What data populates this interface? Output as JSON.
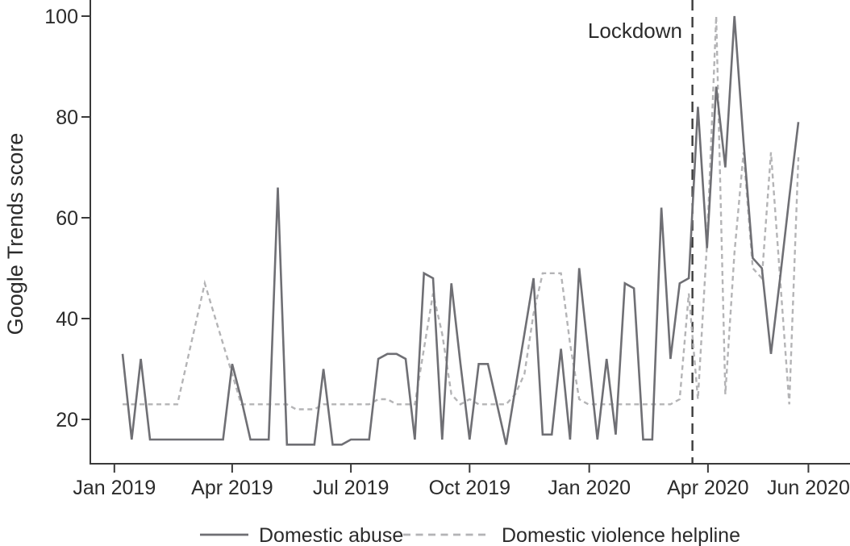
{
  "figure": {
    "kind": "line chart",
    "background": "#ffffff"
  },
  "colors": {
    "series_domestic_abuse": "#6f6f74",
    "series_helpline": "#b4b4b6",
    "axis": "#3a3a3a",
    "text": "#2b2b2b",
    "annotation_line": "#3b3b3b"
  },
  "legend": {
    "items": [
      {
        "label": "Domestic abuse",
        "style": "solid"
      },
      {
        "label": "Domestic violence helpline",
        "style": "dashed"
      }
    ]
  },
  "chart_data": {
    "type": "line",
    "title": "",
    "xlabel": "",
    "ylabel": "Google Trends score",
    "x_unit": "weekly observations (index 0–74, Jan 2019 – Jun 2020)",
    "ylim": [
      11,
      103
    ],
    "grid": false,
    "legend_position": "bottom",
    "y_ticks": [
      20,
      40,
      60,
      80,
      100
    ],
    "x_ticks": [
      {
        "label": "Jan 2019",
        "week": -0.9
      },
      {
        "label": "Apr 2019",
        "week": 12.0
      },
      {
        "label": "Jul 2019",
        "week": 25.0
      },
      {
        "label": "Oct 2019",
        "week": 38.0
      },
      {
        "label": "Jan 2020",
        "week": 51.1
      },
      {
        "label": "Apr 2020",
        "week": 64.1
      },
      {
        "label": "Jun 2020",
        "week": 75.1
      }
    ],
    "annotations": [
      {
        "type": "vline",
        "label": "Lockdown",
        "week": 62.4
      }
    ],
    "series": [
      {
        "name": "Domestic abuse",
        "line_style": "solid",
        "color": "#6f6f74",
        "values": [
          33,
          16,
          32,
          16,
          16,
          16,
          16,
          16,
          16,
          16,
          16,
          16,
          31,
          24,
          16,
          16,
          16,
          66,
          15,
          15,
          15,
          15,
          30,
          15,
          15,
          16,
          16,
          16,
          32,
          33,
          33,
          32,
          16,
          49,
          48,
          16,
          47,
          31,
          16,
          31,
          31,
          23,
          15,
          26,
          37,
          48,
          17,
          17,
          34,
          16,
          50,
          33,
          16,
          32,
          17,
          47,
          46,
          16,
          16,
          62,
          32,
          47,
          48,
          82,
          54,
          86,
          70,
          100,
          75,
          52,
          50,
          33,
          48,
          64,
          79
        ]
      },
      {
        "name": "Domestic violence helpline",
        "line_style": "dashed",
        "color": "#b4b4b6",
        "values": [
          23,
          23,
          23,
          23,
          23,
          23,
          23,
          31,
          39,
          47,
          41,
          35,
          29,
          23,
          23,
          23,
          23,
          23,
          23,
          22,
          22,
          22,
          23,
          23,
          23,
          23,
          23,
          23,
          24,
          24,
          23,
          23,
          23,
          34,
          45,
          37,
          25,
          23,
          24,
          23,
          23,
          23,
          23,
          25,
          29,
          41,
          49,
          49,
          49,
          35,
          24,
          23,
          23,
          23,
          23,
          23,
          23,
          23,
          23,
          23,
          23,
          24,
          45,
          24,
          55,
          100,
          25,
          53,
          73,
          50,
          48,
          73,
          48,
          23,
          72
        ]
      }
    ]
  }
}
